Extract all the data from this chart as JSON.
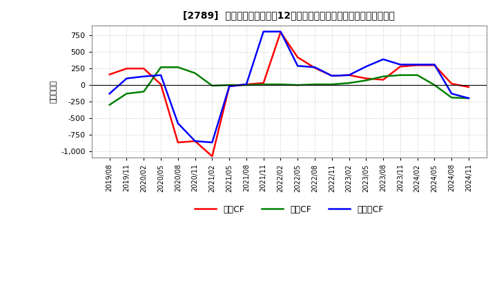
{
  "title": "[2789]  キャッシュフローの12か月移動合計の対前年同期増減額の推移",
  "ylabel": "（百万円）",
  "ylim": [
    -1100,
    900
  ],
  "yticks": [
    -1000,
    -750,
    -500,
    -250,
    0,
    250,
    500,
    750
  ],
  "legend_labels": [
    "営業CF",
    "投資CF",
    "フリーCF"
  ],
  "line_colors": [
    "#ff0000",
    "#008000",
    "#0000ff"
  ],
  "dates": [
    "2019/08",
    "2019/11",
    "2020/02",
    "2020/05",
    "2020/08",
    "2020/11",
    "2021/02",
    "2021/05",
    "2021/08",
    "2021/11",
    "2022/02",
    "2022/05",
    "2022/08",
    "2022/11",
    "2023/02",
    "2023/05",
    "2023/08",
    "2023/11",
    "2024/02",
    "2024/05",
    "2024/08",
    "2024/11"
  ],
  "eigyo_cf": [
    160,
    250,
    250,
    10,
    -870,
    -850,
    -1080,
    -20,
    10,
    30,
    800,
    420,
    260,
    140,
    150,
    100,
    80,
    280,
    300,
    300,
    20,
    -30
  ],
  "toshi_cf": [
    -300,
    -130,
    -100,
    270,
    270,
    180,
    -10,
    0,
    0,
    10,
    10,
    0,
    10,
    10,
    30,
    70,
    130,
    150,
    150,
    0,
    -190,
    -200
  ],
  "free_cf": [
    -130,
    100,
    130,
    150,
    -580,
    -850,
    -870,
    -20,
    10,
    810,
    810,
    290,
    270,
    140,
    150,
    280,
    390,
    310,
    310,
    310,
    -130,
    -200
  ]
}
